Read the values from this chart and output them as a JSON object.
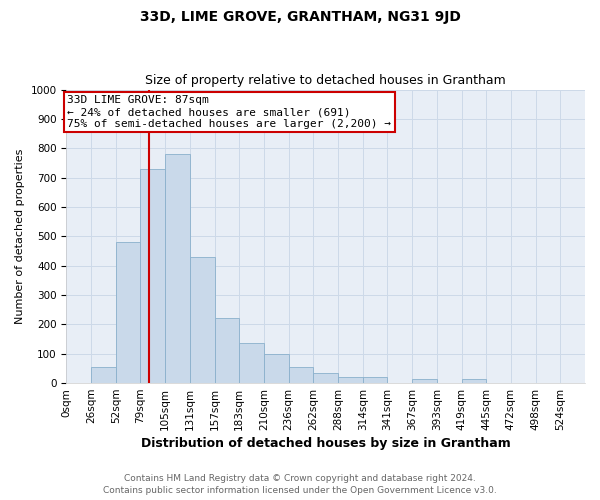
{
  "title": "33D, LIME GROVE, GRANTHAM, NG31 9JD",
  "subtitle": "Size of property relative to detached houses in Grantham",
  "xlabel": "Distribution of detached houses by size in Grantham",
  "ylabel": "Number of detached properties",
  "bar_labels": [
    "0sqm",
    "26sqm",
    "52sqm",
    "79sqm",
    "105sqm",
    "131sqm",
    "157sqm",
    "183sqm",
    "210sqm",
    "236sqm",
    "262sqm",
    "288sqm",
    "314sqm",
    "341sqm",
    "367sqm",
    "393sqm",
    "419sqm",
    "445sqm",
    "472sqm",
    "498sqm",
    "524sqm"
  ],
  "bar_values": [
    0,
    55,
    480,
    730,
    780,
    430,
    220,
    135,
    100,
    55,
    35,
    20,
    20,
    0,
    15,
    0,
    15,
    0,
    0,
    0,
    0
  ],
  "bar_color": "#c9d9ea",
  "bar_edge_color": "#8ab0cc",
  "grid_color": "#cdd9e8",
  "background_color": "#e8eef6",
  "property_line_color": "#cc0000",
  "annotation_text": "33D LIME GROVE: 87sqm\n← 24% of detached houses are smaller (691)\n75% of semi-detached houses are larger (2,200) →",
  "annotation_box_color": "#ffffff",
  "annotation_box_edge_color": "#cc0000",
  "ylim": [
    0,
    1000
  ],
  "yticks": [
    0,
    100,
    200,
    300,
    400,
    500,
    600,
    700,
    800,
    900,
    1000
  ],
  "bin_width": 26,
  "property_sqm": 87,
  "footnote1": "Contains HM Land Registry data © Crown copyright and database right 2024.",
  "footnote2": "Contains public sector information licensed under the Open Government Licence v3.0.",
  "title_fontsize": 10,
  "subtitle_fontsize": 9,
  "xlabel_fontsize": 9,
  "ylabel_fontsize": 8,
  "tick_fontsize": 7.5,
  "annotation_fontsize": 8,
  "footnote_fontsize": 6.5
}
